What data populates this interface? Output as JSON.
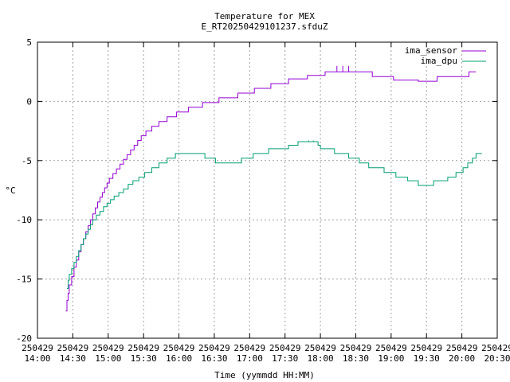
{
  "chart_data": {
    "type": "line",
    "title": "Temperature for MEX",
    "subtitle": "E_RT20250429101237.sfduZ",
    "xlabel": "Time (yymmdd HH:MM)",
    "ylabel": "°C",
    "xlim": [
      "2025-04-29 14:00",
      "2025-04-29 20:30"
    ],
    "ylim": [
      -20,
      5
    ],
    "grid": true,
    "legend_position": "top-right",
    "x_ticks": [
      {
        "date": "250429",
        "time": "14:00",
        "t": "14:00"
      },
      {
        "date": "250429",
        "time": "14:30",
        "t": "14:30"
      },
      {
        "date": "250429",
        "time": "15:00",
        "t": "15:00"
      },
      {
        "date": "250429",
        "time": "15:30",
        "t": "15:30"
      },
      {
        "date": "250429",
        "time": "16:00",
        "t": "16:00"
      },
      {
        "date": "250429",
        "time": "16:30",
        "t": "16:30"
      },
      {
        "date": "250429",
        "time": "17:00",
        "t": "17:00"
      },
      {
        "date": "250429",
        "time": "17:30",
        "t": "17:30"
      },
      {
        "date": "250429",
        "time": "18:00",
        "t": "18:00"
      },
      {
        "date": "250429",
        "time": "18:30",
        "t": "18:30"
      },
      {
        "date": "250429",
        "time": "19:00",
        "t": "19:00"
      },
      {
        "date": "250429",
        "time": "19:30",
        "t": "19:30"
      },
      {
        "date": "250429",
        "time": "20:00",
        "t": "20:00"
      },
      {
        "date": "250429",
        "time": "20:30",
        "t": "20:30"
      }
    ],
    "y_ticks": [
      {
        "label": "5",
        "v": 5
      },
      {
        "label": "0",
        "v": 0
      },
      {
        "label": "-5",
        "v": -5
      },
      {
        "label": "-10",
        "v": -10
      },
      {
        "label": "-15",
        "v": -15
      },
      {
        "label": "-20",
        "v": -20
      }
    ],
    "series": [
      {
        "name": "ima_sensor",
        "color": "#9400d3",
        "points": [
          [
            "14:24",
            -17.7
          ],
          [
            "14:25",
            -16.8
          ],
          [
            "14:26",
            -16.2
          ],
          [
            "14:27",
            -15.5
          ],
          [
            "14:29",
            -14.8
          ],
          [
            "14:31",
            -14.0
          ],
          [
            "14:33",
            -13.4
          ],
          [
            "14:35",
            -12.7
          ],
          [
            "14:37",
            -12.1
          ],
          [
            "14:39",
            -11.6
          ],
          [
            "14:41",
            -11.0
          ],
          [
            "14:43",
            -10.5
          ],
          [
            "14:45",
            -10.0
          ],
          [
            "14:47",
            -9.5
          ],
          [
            "14:49",
            -9.0
          ],
          [
            "14:51",
            -8.5
          ],
          [
            "14:53",
            -8.1
          ],
          [
            "14:55",
            -7.7
          ],
          [
            "14:57",
            -7.3
          ],
          [
            "14:59",
            -6.9
          ],
          [
            "15:01",
            -6.5
          ],
          [
            "15:04",
            -6.1
          ],
          [
            "15:07",
            -5.7
          ],
          [
            "15:10",
            -5.3
          ],
          [
            "15:13",
            -4.9
          ],
          [
            "15:16",
            -4.5
          ],
          [
            "15:19",
            -4.1
          ],
          [
            "15:22",
            -3.7
          ],
          [
            "15:25",
            -3.3
          ],
          [
            "15:28",
            -2.9
          ],
          [
            "15:32",
            -2.5
          ],
          [
            "15:37",
            -2.1
          ],
          [
            "15:43",
            -1.7
          ],
          [
            "15:50",
            -1.3
          ],
          [
            "15:58",
            -0.9
          ],
          [
            "16:08",
            -0.5
          ],
          [
            "16:20",
            -0.1
          ],
          [
            "16:34",
            0.3
          ],
          [
            "16:50",
            0.7
          ],
          [
            "17:04",
            1.1
          ],
          [
            "17:18",
            1.5
          ],
          [
            "17:33",
            1.9
          ],
          [
            "17:49",
            2.2
          ],
          [
            "18:04",
            2.5
          ],
          [
            "18:42",
            2.5
          ],
          [
            "18:44",
            2.1
          ],
          [
            "19:00",
            2.1
          ],
          [
            "19:02",
            1.8
          ],
          [
            "19:23",
            1.7
          ],
          [
            "19:38",
            1.7
          ],
          [
            "19:39",
            2.1
          ],
          [
            "19:56",
            2.1
          ],
          [
            "20:06",
            2.5
          ],
          [
            "20:12",
            2.5
          ]
        ],
        "spikes": [
          [
            "18:14",
            3.0
          ],
          [
            "18:19",
            3.0
          ],
          [
            "18:24",
            3.0
          ]
        ]
      },
      {
        "name": "ima_dpu",
        "color": "#009e73",
        "points": [
          [
            "14:25",
            -15.8
          ],
          [
            "14:26",
            -15.1
          ],
          [
            "14:27",
            -14.6
          ],
          [
            "14:29",
            -14.1
          ],
          [
            "14:31",
            -13.6
          ],
          [
            "14:33",
            -13.1
          ],
          [
            "14:35",
            -12.6
          ],
          [
            "14:37",
            -12.1
          ],
          [
            "14:39",
            -11.6
          ],
          [
            "14:41",
            -11.2
          ],
          [
            "14:43",
            -10.8
          ],
          [
            "14:45",
            -10.4
          ],
          [
            "14:47",
            -10.0
          ],
          [
            "14:50",
            -9.6
          ],
          [
            "14:53",
            -9.3
          ],
          [
            "14:56",
            -8.9
          ],
          [
            "14:59",
            -8.6
          ],
          [
            "15:02",
            -8.3
          ],
          [
            "15:05",
            -8.0
          ],
          [
            "15:09",
            -7.7
          ],
          [
            "15:13",
            -7.4
          ],
          [
            "15:17",
            -7.0
          ],
          [
            "15:21",
            -6.7
          ],
          [
            "15:26",
            -6.4
          ],
          [
            "15:31",
            -6.0
          ],
          [
            "15:37",
            -5.6
          ],
          [
            "15:43",
            -5.2
          ],
          [
            "15:50",
            -4.8
          ],
          [
            "15:57",
            -4.4
          ],
          [
            "16:22",
            -4.8
          ],
          [
            "16:31",
            -5.2
          ],
          [
            "16:53",
            -4.8
          ],
          [
            "17:03",
            -4.4
          ],
          [
            "17:16",
            -4.0
          ],
          [
            "17:33",
            -3.7
          ],
          [
            "17:41",
            -3.4
          ],
          [
            "17:58",
            -3.7
          ],
          [
            "18:00",
            -4.0
          ],
          [
            "18:12",
            -4.4
          ],
          [
            "18:24",
            -4.8
          ],
          [
            "18:33",
            -5.2
          ],
          [
            "18:41",
            -5.6
          ],
          [
            "18:54",
            -6.0
          ],
          [
            "19:04",
            -6.4
          ],
          [
            "19:14",
            -6.7
          ],
          [
            "19:23",
            -7.1
          ],
          [
            "19:36",
            -6.7
          ],
          [
            "19:48",
            -6.4
          ],
          [
            "19:55",
            -6.0
          ],
          [
            "20:01",
            -5.6
          ],
          [
            "20:05",
            -5.2
          ],
          [
            "20:09",
            -4.8
          ],
          [
            "20:12",
            -4.4
          ],
          [
            "20:17",
            -4.4
          ]
        ],
        "spikes": [
          [
            "17:50",
            -3.3
          ],
          [
            "17:54",
            -3.3
          ]
        ]
      }
    ]
  }
}
